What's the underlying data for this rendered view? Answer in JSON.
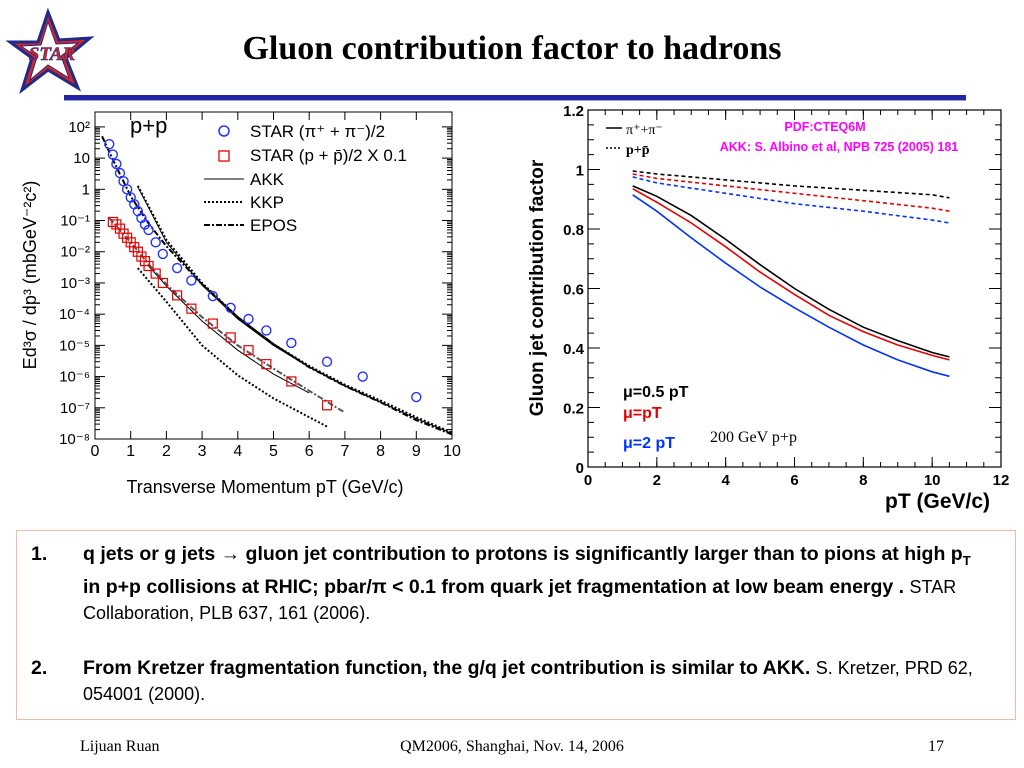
{
  "slide": {
    "logo_text": "STAR",
    "title": "Gluon contribution factor to hadrons",
    "footer_left": "Lijuan Ruan",
    "footer_center": "QM2006, Shanghai, Nov. 14, 2006",
    "footer_right": "17"
  },
  "colors": {
    "rule": "#2424a8",
    "logo_star": "#d8261e",
    "logo_outline": "#1f2a8a",
    "box_border": "#f0b9a8",
    "accent_red": "#e60000",
    "accent_blue": "#0033ff",
    "accent_magenta": "#ff00ff"
  },
  "left_plot": {
    "panel_label": "p+p",
    "ylabel": "Ed³σ / dp³ (mbGeV⁻²c²)",
    "xlabel": "Transverse Momentum pT (GeV/c)",
    "legend": [
      "STAR (π⁺ + π⁻)/2",
      "STAR (p + p̄)/2 X 0.1",
      "AKK",
      "KKP",
      "EPOS"
    ],
    "ytick_labels": [
      "10²",
      "10",
      "1",
      "10⁻¹",
      "10⁻²",
      "10⁻³",
      "10⁻⁴",
      "10⁻⁵",
      "10⁻⁶",
      "10⁻⁷",
      "10⁻⁸"
    ],
    "xtick_labels": [
      "0",
      "1",
      "2",
      "3",
      "4",
      "5",
      "6",
      "7",
      "8",
      "9",
      "10"
    ]
  },
  "right_plot": {
    "ylabel": "Gluon jet contribution factor",
    "xlabel": "pT (GeV/c)",
    "annotation_pdf": "PDF:CTEQ6M",
    "annotation_akk": "AKK: S. Albino et al, NPB 725 (2005) 181",
    "legend_pion": "π⁺+π⁻",
    "legend_proton": "p+p̄",
    "mu_labels": [
      "μ=0.5 pT",
      "μ=pT",
      "μ=2 pT"
    ],
    "energy_label": "200 GeV p+p",
    "ytick_labels": [
      "0",
      "0.2",
      "0.4",
      "0.6",
      "0.8",
      "1",
      "1.2"
    ],
    "xtick_labels": [
      "0",
      "2",
      "4",
      "6",
      "8",
      "10",
      "12"
    ]
  },
  "chart_data": [
    {
      "type": "scatter",
      "title": "p+p",
      "xlabel": "Transverse Momentum pT (GeV/c)",
      "ylabel": "Ed3σ/dp3 (mbGeV-2c2)",
      "xlim": [
        0,
        10
      ],
      "ylim": [
        1e-08,
        300
      ],
      "yscale": "log",
      "legend_position": "top-right",
      "series": [
        {
          "name": "STAR (π⁺ + π⁻)/2",
          "marker": "circle",
          "color": "#2233ff",
          "x": [
            0.4,
            0.5,
            0.6,
            0.7,
            0.8,
            0.9,
            1.0,
            1.1,
            1.2,
            1.3,
            1.4,
            1.5,
            1.7,
            1.9,
            2.3,
            2.7,
            3.3,
            3.8,
            4.3,
            4.8,
            5.5,
            6.5,
            7.5,
            9.0
          ],
          "y": [
            28,
            13,
            6.5,
            3.3,
            1.8,
            1.0,
            0.55,
            0.33,
            0.2,
            0.12,
            0.075,
            0.05,
            0.02,
            0.0085,
            0.003,
            0.0012,
            0.00038,
            0.00016,
            7e-05,
            3e-05,
            1.2e-05,
            3e-06,
            1e-06,
            2.2e-07
          ]
        },
        {
          "name": "STAR (p + p̄)/2 X 0.1",
          "marker": "square",
          "color": "#e60000",
          "x": [
            0.5,
            0.6,
            0.7,
            0.8,
            0.9,
            1.0,
            1.1,
            1.2,
            1.3,
            1.4,
            1.5,
            1.7,
            1.9,
            2.3,
            2.7,
            3.3,
            3.8,
            4.3,
            4.8,
            5.5,
            6.5
          ],
          "y": [
            0.09,
            0.075,
            0.055,
            0.038,
            0.028,
            0.02,
            0.014,
            0.01,
            0.007,
            0.005,
            0.0035,
            0.002,
            0.001,
            0.0004,
            0.00015,
            5e-05,
            1.8e-05,
            7e-06,
            2.5e-06,
            7e-07,
            1.2e-07
          ]
        },
        {
          "name": "AKK",
          "style": "solid",
          "color": "#000000",
          "x": [
            1.2,
            2,
            3,
            4,
            5,
            6,
            7,
            8,
            9,
            10
          ],
          "y": [
            1.2,
            0.02,
            0.00085,
            7e-05,
            1e-05,
            2e-06,
            5e-07,
            1.5e-07,
            4.5e-08,
            1.5e-08
          ]
        },
        {
          "name": "KKP",
          "style": "dotted",
          "color": "#000000",
          "x": [
            1.2,
            2,
            3,
            4,
            5,
            6,
            7,
            8,
            9,
            10
          ],
          "y": [
            1.3,
            0.024,
            0.001,
            8e-05,
            1.1e-05,
            2.2e-06,
            5.5e-07,
            1.7e-07,
            5e-08,
            1.6e-08
          ]
        },
        {
          "name": "EPOS",
          "style": "dash-dot",
          "color": "#000000",
          "x": [
            0.2,
            0.5,
            1,
            1.5,
            2,
            3,
            4,
            5,
            6,
            7,
            8,
            9,
            10
          ],
          "y": [
            50,
            9,
            0.6,
            0.08,
            0.015,
            0.0009,
            8e-05,
            1.1e-05,
            2e-06,
            5e-07,
            1.5e-07,
            4e-08,
            1.4e-08
          ]
        },
        {
          "name": "AKK (p+p̄)",
          "style": "solid",
          "color": "#000000",
          "x": [
            1.5,
            2,
            3,
            4,
            5,
            6
          ],
          "y": [
            0.0035,
            0.0008,
            6e-05,
            7e-06,
            1.2e-06,
            3e-07
          ]
        },
        {
          "name": "KKP (p+p̄)",
          "style": "dotted",
          "color": "#000000",
          "x": [
            1.2,
            2,
            3,
            4,
            5,
            6,
            6.5
          ],
          "y": [
            0.003,
            0.00025,
            1e-05,
            1.1e-06,
            2e-07,
            5e-08,
            2.5e-08
          ]
        },
        {
          "name": "EPOS (p+p̄)",
          "style": "dash-dot",
          "color": "#555555",
          "x": [
            0.4,
            1,
            1.5,
            2,
            3,
            4,
            5,
            6,
            7
          ],
          "y": [
            0.12,
            0.02,
            0.004,
            0.0009,
            8e-05,
            1e-05,
            1.8e-06,
            3.5e-07,
            7e-08
          ]
        }
      ]
    },
    {
      "type": "line",
      "xlabel": "pT (GeV/c)",
      "ylabel": "Gluon jet contribution factor",
      "xlim": [
        0,
        12
      ],
      "ylim": [
        0,
        1.2
      ],
      "series": [
        {
          "name": "π⁺+π⁻ μ=0.5 pT",
          "style": "solid",
          "color": "#000000",
          "x": [
            1.3,
            2,
            3,
            4,
            5,
            6,
            7,
            8,
            9,
            10,
            10.5
          ],
          "y": [
            0.945,
            0.91,
            0.845,
            0.765,
            0.68,
            0.6,
            0.53,
            0.47,
            0.425,
            0.385,
            0.37
          ]
        },
        {
          "name": "π⁺+π⁻ μ=pT",
          "style": "solid",
          "color": "#e60000",
          "x": [
            1.3,
            2,
            3,
            4,
            5,
            6,
            7,
            8,
            9,
            10,
            10.5
          ],
          "y": [
            0.935,
            0.89,
            0.82,
            0.74,
            0.655,
            0.58,
            0.51,
            0.455,
            0.41,
            0.375,
            0.36
          ]
        },
        {
          "name": "π⁺+π⁻ μ=2 pT",
          "style": "solid",
          "color": "#0033ff",
          "x": [
            1.3,
            2,
            3,
            4,
            5,
            6,
            7,
            8,
            9,
            10,
            10.5
          ],
          "y": [
            0.915,
            0.86,
            0.77,
            0.685,
            0.605,
            0.535,
            0.47,
            0.41,
            0.36,
            0.32,
            0.305
          ]
        },
        {
          "name": "p+p̄ μ=0.5 pT",
          "style": "dashed",
          "color": "#000000",
          "x": [
            1.3,
            2,
            4,
            6,
            8,
            10,
            10.5
          ],
          "y": [
            0.995,
            0.985,
            0.965,
            0.945,
            0.93,
            0.915,
            0.905
          ]
        },
        {
          "name": "p+p̄ μ=pT",
          "style": "dashed",
          "color": "#e60000",
          "x": [
            1.3,
            2,
            4,
            6,
            8,
            10,
            10.5
          ],
          "y": [
            0.985,
            0.97,
            0.945,
            0.92,
            0.895,
            0.87,
            0.86
          ]
        },
        {
          "name": "p+p̄ μ=2 pT",
          "style": "dashed",
          "color": "#0033ff",
          "x": [
            1.3,
            2,
            4,
            6,
            8,
            10,
            10.5
          ],
          "y": [
            0.975,
            0.955,
            0.92,
            0.885,
            0.86,
            0.83,
            0.82
          ]
        }
      ]
    }
  ],
  "bullets": [
    {
      "num": "1.",
      "pre": "q jets or g jets",
      "arrow": "→",
      "main_a": "gluon jet contribution to protons is significantly larger than to pions at high p",
      "sub": "T",
      "main_b": " in p+p collisions at RHIC; pbar/π < 0.1 from quark jet fragmentation at low beam energy .",
      "cite": "STAR Collaboration, PLB 637, 161 (2006)."
    },
    {
      "num": "2.",
      "main": "From Kretzer fragmentation function, the g/q jet contribution is similar to AKK.",
      "cite": "S. Kretzer, PRD 62, 054001 (2000)."
    }
  ]
}
